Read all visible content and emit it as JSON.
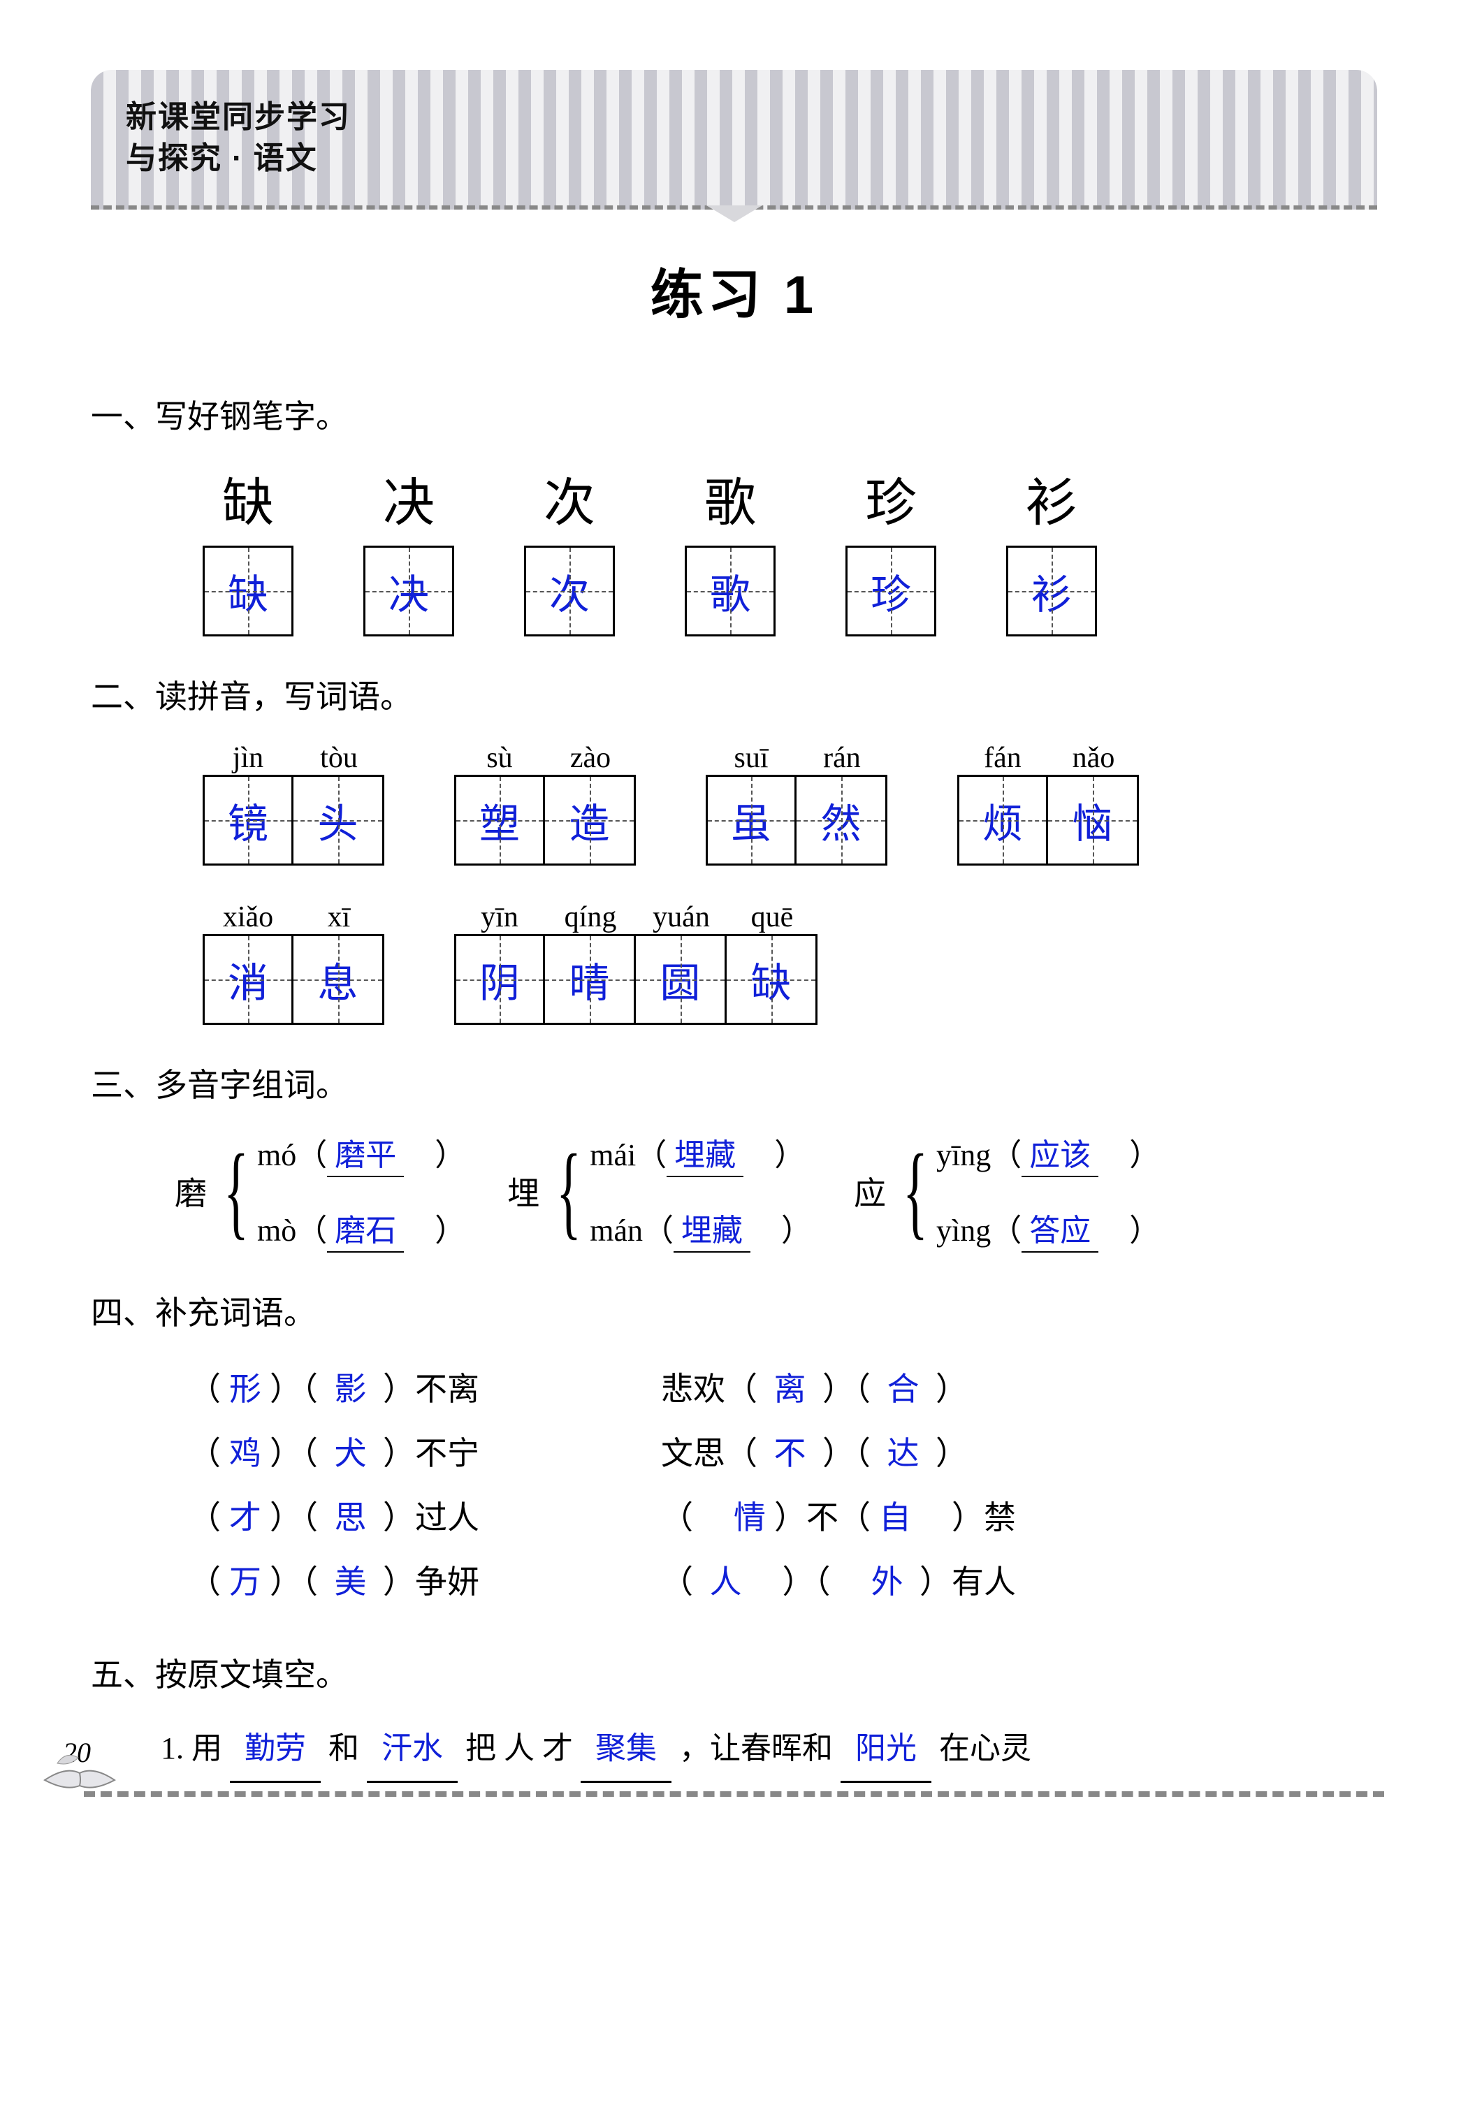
{
  "header": {
    "line1": "新课堂同步学习",
    "line2a": "与探究",
    "line2b": "语文"
  },
  "title": "练习 1",
  "colors": {
    "answer": "#1020d8",
    "text": "#000000"
  },
  "section1": {
    "heading": "一、写好钢笔字。",
    "chars": [
      {
        "model": "缺",
        "written": "缺"
      },
      {
        "model": "决",
        "written": "决"
      },
      {
        "model": "次",
        "written": "次"
      },
      {
        "model": "歌",
        "written": "歌"
      },
      {
        "model": "珍",
        "written": "珍"
      },
      {
        "model": "衫",
        "written": "衫"
      }
    ]
  },
  "section2": {
    "heading": "二、读拼音，写词语。",
    "row1": [
      {
        "pinyin": [
          "jìn",
          "tòu"
        ],
        "chars": [
          "镜",
          "头"
        ]
      },
      {
        "pinyin": [
          "sù",
          "zào"
        ],
        "chars": [
          "塑",
          "造"
        ]
      },
      {
        "pinyin": [
          "suī",
          "rán"
        ],
        "chars": [
          "虽",
          "然"
        ]
      },
      {
        "pinyin": [
          "fán",
          "nǎo"
        ],
        "chars": [
          "烦",
          "恼"
        ]
      }
    ],
    "row2": [
      {
        "pinyin": [
          "xiǎo",
          "xī"
        ],
        "chars": [
          "消",
          "息"
        ]
      },
      {
        "pinyin": [
          "yīn",
          "qíng",
          "yuán",
          "quē"
        ],
        "chars": [
          "阴",
          "晴",
          "圆",
          "缺"
        ]
      }
    ]
  },
  "section3": {
    "heading": "三、多音字组词。",
    "groups": [
      {
        "char": "磨",
        "items": [
          {
            "py": "mó",
            "word": "磨平"
          },
          {
            "py": "mò",
            "word": "磨石"
          }
        ]
      },
      {
        "char": "埋",
        "items": [
          {
            "py": "mái",
            "word": "埋藏"
          },
          {
            "py": "mán",
            "word": "埋藏"
          }
        ]
      },
      {
        "char": "应",
        "items": [
          {
            "py": "yīng",
            "word": "应该"
          },
          {
            "py": "yìng",
            "word": "答应"
          }
        ]
      }
    ]
  },
  "section4": {
    "heading": "四、补充词语。",
    "rows": [
      {
        "left": {
          "a": "形",
          "b": "影",
          "tail": "不离"
        },
        "right": {
          "pre": "悲欢",
          "a": "离",
          "b": "合"
        }
      },
      {
        "left": {
          "a": "鸡",
          "b": "犬",
          "tail": "不宁"
        },
        "right": {
          "pre": "文思",
          "a": "不",
          "b": "达"
        }
      },
      {
        "left": {
          "a": "才",
          "b": "思",
          "tail": "过人"
        },
        "rightAlt": {
          "a": "情",
          "mid": "不",
          "b": "自",
          "tail": "禁"
        }
      },
      {
        "left": {
          "a": "万",
          "b": "美",
          "tail": "争妍"
        },
        "rightC": {
          "a": "人",
          "b": "外",
          "tail": "有人"
        }
      }
    ]
  },
  "section5": {
    "heading": "五、按原文填空。",
    "q1": {
      "num": "1.",
      "t1": "用",
      "b1": "勤劳",
      "t2": "和",
      "b2": "汗水",
      "t3": "把 人 才",
      "b3": "聚集",
      "t4": "，让春晖和",
      "b4": "阳光",
      "t5": "在心灵"
    }
  },
  "pageNumber": "20"
}
